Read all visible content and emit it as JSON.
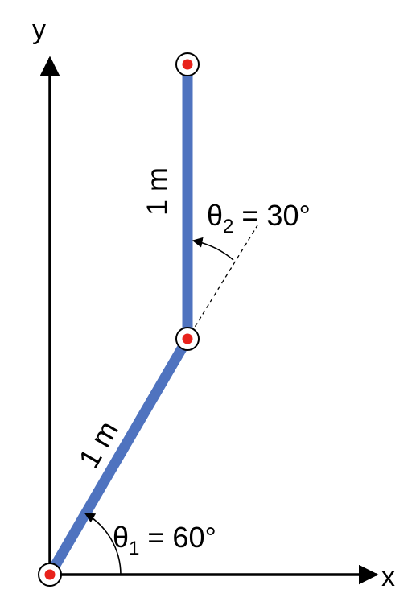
{
  "axes": {
    "x_label": "x",
    "y_label": "y"
  },
  "links": {
    "link1_length": "1 m",
    "link2_length": "1 m"
  },
  "angles": {
    "theta1": {
      "symbol": "θ",
      "subscript": "1",
      "value": " = 60°"
    },
    "theta2": {
      "symbol": "θ",
      "subscript": "2",
      "value": " = 30°"
    }
  },
  "colors": {
    "link": "#4f73bf",
    "joint_dot": "#e8221b",
    "ink": "#000000"
  }
}
